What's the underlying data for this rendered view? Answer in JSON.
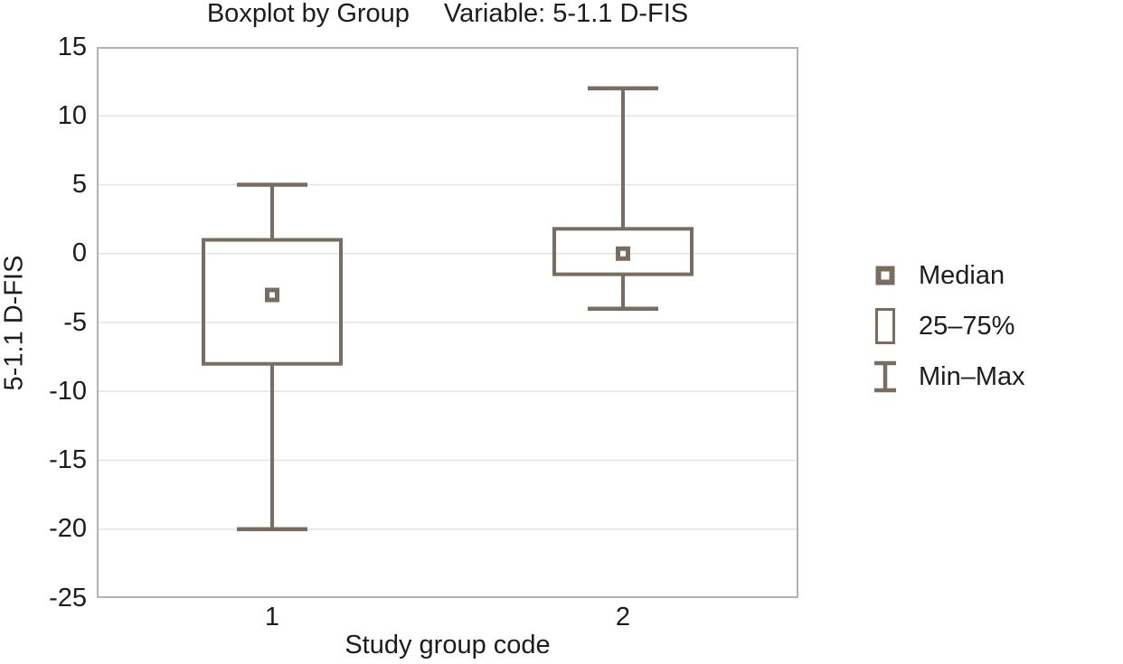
{
  "chart": {
    "title_left": "Boxplot by Group",
    "title_right": "Variable: 5-1.1 D-FIS"
  },
  "chart_data": {
    "type": "boxplot",
    "title": "Boxplot by Group    Variable: 5-1.1 D-FIS",
    "xlabel": "Study group code",
    "ylabel": "5-1.1 D-FIS",
    "ylim": [
      -25,
      15
    ],
    "yticks": [
      15,
      10,
      5,
      0,
      -5,
      -10,
      -15,
      -20,
      -25
    ],
    "grid": "horizontal",
    "categories": [
      "1",
      "2"
    ],
    "groups": [
      {
        "label": "1",
        "min": -20,
        "q1": -8,
        "median": -3,
        "q3": 1,
        "max": 5
      },
      {
        "label": "2",
        "min": -4,
        "q1": -1.5,
        "median": 0,
        "q3": 1.8,
        "max": 12
      }
    ],
    "legend": {
      "position": "right",
      "items": [
        {
          "label": "Median",
          "marker": "median-square"
        },
        {
          "label": "25–75%",
          "marker": "box"
        },
        {
          "label": "Min–Max",
          "marker": "whisker"
        }
      ]
    },
    "colors": {
      "box": "#7b6c60",
      "frame": "#b2b2b6",
      "grid": "#e3e3e3",
      "text": "#1c1c1c"
    }
  }
}
